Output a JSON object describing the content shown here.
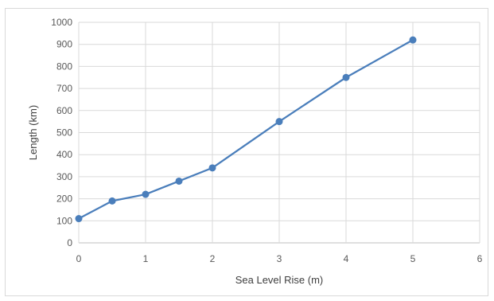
{
  "chart_data": {
    "type": "line",
    "title": "",
    "xlabel": "Sea Level Rise (m)",
    "ylabel": "Length (km)",
    "xlim": [
      0,
      6
    ],
    "ylim": [
      0,
      1000
    ],
    "xticks": [
      "0",
      "1",
      "2",
      "3",
      "4",
      "5",
      "6"
    ],
    "yticks": [
      "0",
      "100",
      "200",
      "300",
      "400",
      "500",
      "600",
      "700",
      "800",
      "900",
      "1000"
    ],
    "grid": true,
    "legend": "none",
    "series": [
      {
        "color": "#4a7ebb",
        "x": [
          0,
          0.5,
          1,
          1.5,
          2,
          3,
          4,
          5
        ],
        "y": [
          110,
          190,
          220,
          280,
          340,
          550,
          750,
          920
        ]
      }
    ]
  }
}
